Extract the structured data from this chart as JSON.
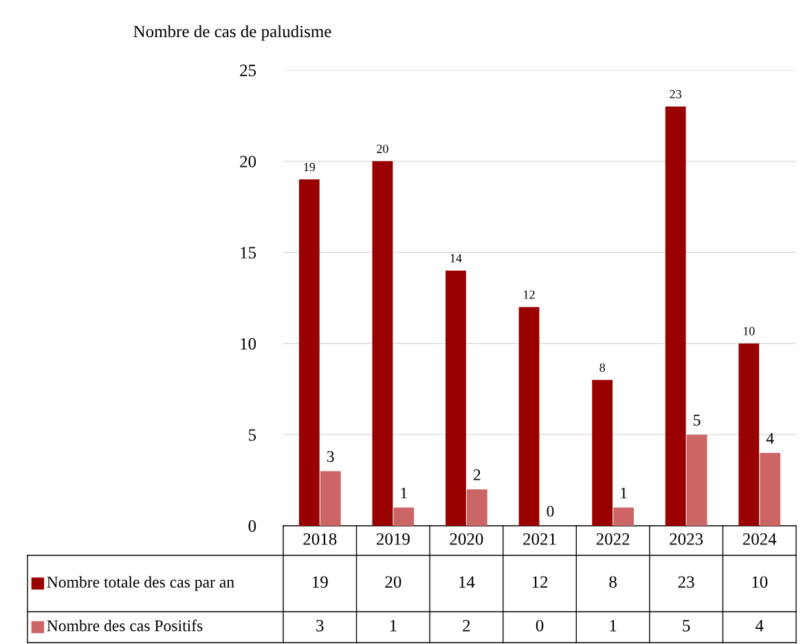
{
  "chart_data": {
    "type": "bar",
    "ylabel": "Nombre de cas de paludisme",
    "categories": [
      "2018",
      "2019",
      "2020",
      "2021",
      "2022",
      "2023",
      "2024"
    ],
    "series": [
      {
        "name": "Nombre totale des cas par an",
        "color": "#990000",
        "values": [
          19,
          20,
          14,
          12,
          8,
          23,
          10
        ],
        "value_labels": [
          "19",
          "20",
          "14",
          "12",
          "8",
          "23",
          "10"
        ]
      },
      {
        "name": "Nombre des cas Positifs",
        "color": "#cc6666",
        "values": [
          3,
          1,
          2,
          0,
          1,
          5,
          4
        ],
        "value_labels": [
          "3",
          "1",
          "2",
          "0",
          "1",
          "5",
          "4"
        ]
      }
    ],
    "ylim": [
      0,
      25
    ],
    "yticks": [
      0,
      5,
      10,
      15,
      20,
      25
    ],
    "grid": "y",
    "legend": "bottom",
    "annotations": [
      "19",
      "20",
      "14",
      "12",
      "8",
      "23",
      "10",
      "3",
      "1",
      "2",
      "0",
      "1",
      "5",
      "4"
    ]
  }
}
